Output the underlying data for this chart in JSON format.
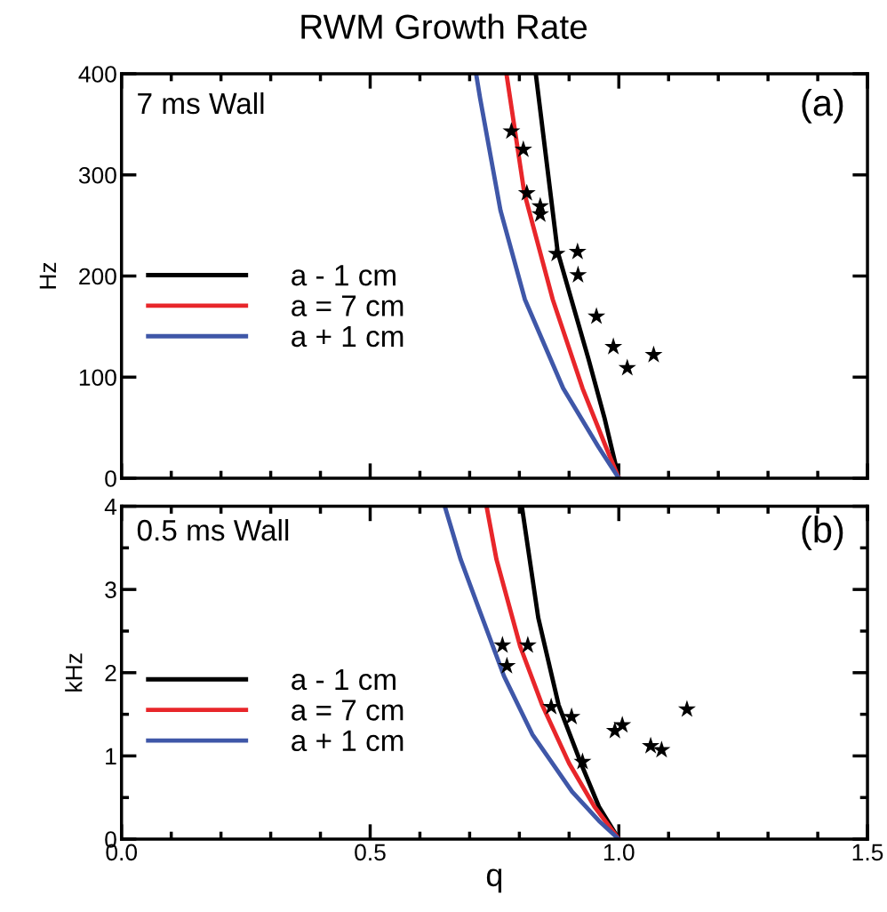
{
  "chart_data": [
    {
      "type": "line",
      "title": "RWM Growth Rate",
      "ylabel": "Hz",
      "annotations": [
        "7 ms Wall",
        "(a)"
      ],
      "xlim": [
        0,
        1.5
      ],
      "ylim": [
        0,
        400
      ],
      "yticks": [
        0,
        100,
        200,
        300,
        400
      ],
      "tick_labels": "y",
      "legend": "center left",
      "grid": false,
      "series": [
        {
          "name": "a - 1 cm",
          "color": "#000000",
          "x": [
            0.833,
            0.877,
            0.939,
            0.971,
            1.0
          ],
          "values": [
            400,
            224,
            118,
            60,
            0
          ]
        },
        {
          "name": "a = 7 cm",
          "color": "#e8262a",
          "x": [
            0.774,
            0.81,
            0.867,
            0.927,
            0.974,
            1.0
          ],
          "values": [
            400,
            282,
            177,
            89,
            31,
            0
          ]
        },
        {
          "name": "a + 1 cm",
          "color": "#3f57a8",
          "x": [
            0.713,
            0.721,
            0.762,
            0.811,
            0.888,
            0.959,
            1.0
          ],
          "values": [
            400,
            376,
            265,
            177,
            89,
            31,
            0
          ]
        },
        {
          "type": "scatter",
          "marker": "star",
          "color": "#000000",
          "x": [
            0.784,
            0.808,
            0.815,
            0.842,
            0.842,
            0.875,
            0.917,
            0.918,
            0.955,
            0.989,
            1.017,
            1.07
          ],
          "values": [
            343,
            325,
            282,
            269,
            261,
            222,
            224,
            201,
            160,
            130,
            109,
            122
          ]
        }
      ]
    },
    {
      "type": "line",
      "xlabel": "q",
      "ylabel": "kHz",
      "annotations": [
        "0.5 ms Wall",
        "(b)"
      ],
      "xlim": [
        0,
        1.5
      ],
      "xticks": [
        {
          "value": 0,
          "label": "0.0"
        },
        0.5,
        {
          "value": 1,
          "label": "1.0"
        },
        1.5
      ],
      "ylim": [
        0,
        4
      ],
      "yticks": [
        0,
        1,
        2,
        3,
        4
      ],
      "legend": "center left",
      "grid": false,
      "series": [
        {
          "name": "a - 1 cm",
          "color": "#000000",
          "x": [
            0.805,
            0.838,
            0.879,
            0.924,
            0.96,
            1.0
          ],
          "values": [
            4,
            2.66,
            1.61,
            0.91,
            0.39,
            0
          ]
        },
        {
          "name": "a = 7 cm",
          "color": "#e8262a",
          "x": [
            0.734,
            0.754,
            0.802,
            0.846,
            0.9,
            0.951,
            1.0
          ],
          "values": [
            4,
            3.36,
            2.31,
            1.61,
            0.91,
            0.39,
            0
          ]
        },
        {
          "name": "a + 1 cm",
          "color": "#3f57a8",
          "x": [
            0.65,
            0.682,
            0.721,
            0.769,
            0.826,
            0.906,
            0.96,
            1.0
          ],
          "values": [
            4,
            3.36,
            2.73,
            1.96,
            1.26,
            0.57,
            0.22,
            0
          ]
        },
        {
          "type": "scatter",
          "marker": "star",
          "color": "#000000",
          "x": [
            0.766,
            0.775,
            0.817,
            0.864,
            0.905,
            0.927,
            0.992,
            1.007,
            1.064,
            1.086,
            1.137
          ],
          "values": [
            2.33,
            2.08,
            2.33,
            1.59,
            1.47,
            0.93,
            1.3,
            1.37,
            1.12,
            1.07,
            1.56
          ]
        }
      ]
    }
  ]
}
